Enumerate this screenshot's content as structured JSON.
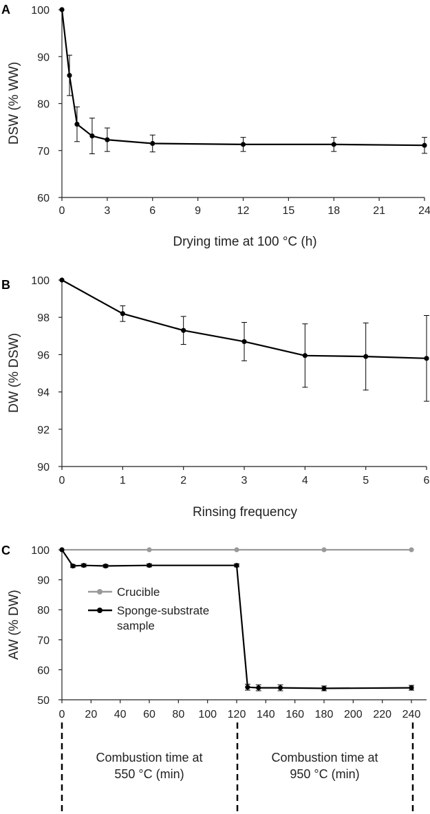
{
  "chart_data": [
    {
      "panel": "A",
      "type": "line",
      "xlabel": "Drying time at 100 °C (h)",
      "ylabel": "DSW (% WW)",
      "xlim": [
        0,
        24
      ],
      "ylim": [
        60,
        100
      ],
      "xticks": [
        0,
        3,
        6,
        9,
        12,
        15,
        18,
        21,
        24
      ],
      "yticks": [
        60,
        70,
        80,
        90,
        100
      ],
      "series": [
        {
          "color": "#000000",
          "x": [
            0,
            0.5,
            1,
            2,
            3,
            6,
            12,
            18,
            24
          ],
          "y": [
            100,
            86,
            75.6,
            73.1,
            72.3,
            71.5,
            71.3,
            71.3,
            71.1
          ],
          "err": [
            0,
            4.3,
            3.7,
            3.8,
            2.5,
            1.8,
            1.5,
            1.5,
            1.7
          ]
        }
      ]
    },
    {
      "panel": "B",
      "type": "line",
      "xlabel": "Rinsing frequency",
      "ylabel": "DW (% DSW)",
      "xlim": [
        0,
        6
      ],
      "ylim": [
        90,
        100
      ],
      "xticks": [
        0,
        1,
        2,
        3,
        4,
        5,
        6
      ],
      "yticks": [
        90,
        92,
        94,
        96,
        98,
        100
      ],
      "series": [
        {
          "color": "#000000",
          "x": [
            0,
            1,
            2,
            3,
            4,
            5,
            6
          ],
          "y": [
            100,
            98.2,
            97.3,
            96.7,
            95.95,
            95.9,
            95.8
          ],
          "err": [
            0,
            0.42,
            0.75,
            1.03,
            1.7,
            1.8,
            2.3
          ]
        }
      ]
    },
    {
      "panel": "C",
      "type": "line",
      "xlabel": "",
      "ylabel": "AW (% DW)",
      "xlim": [
        0,
        240
      ],
      "ylim": [
        50,
        100
      ],
      "xticks": [
        0,
        20,
        40,
        60,
        80,
        100,
        120,
        140,
        160,
        180,
        200,
        220,
        240
      ],
      "yticks": [
        50,
        60,
        70,
        80,
        90,
        100
      ],
      "legend": "center-left",
      "series": [
        {
          "name": "Crucible",
          "color": "#999999",
          "x": [
            0,
            60,
            120,
            180,
            240
          ],
          "y": [
            100,
            100,
            100,
            100,
            100
          ],
          "err": [
            0,
            0,
            0,
            0,
            0
          ]
        },
        {
          "name": "Sponge-substrate\nsample",
          "color": "#000000",
          "x": [
            0,
            7.5,
            15,
            30,
            60,
            120,
            127.5,
            135,
            150,
            180,
            240
          ],
          "y": [
            100,
            94.6,
            94.8,
            94.6,
            94.8,
            94.8,
            54.2,
            54,
            54,
            53.8,
            54
          ],
          "err": [
            0,
            0.5,
            0.5,
            0.5,
            0.5,
            0.5,
            1,
            1,
            1,
            0.8,
            0.8
          ]
        }
      ],
      "annotations": [
        "Combustion time at\n550 °C (min)",
        "Combustion time at\n950 °C (min)"
      ]
    }
  ]
}
